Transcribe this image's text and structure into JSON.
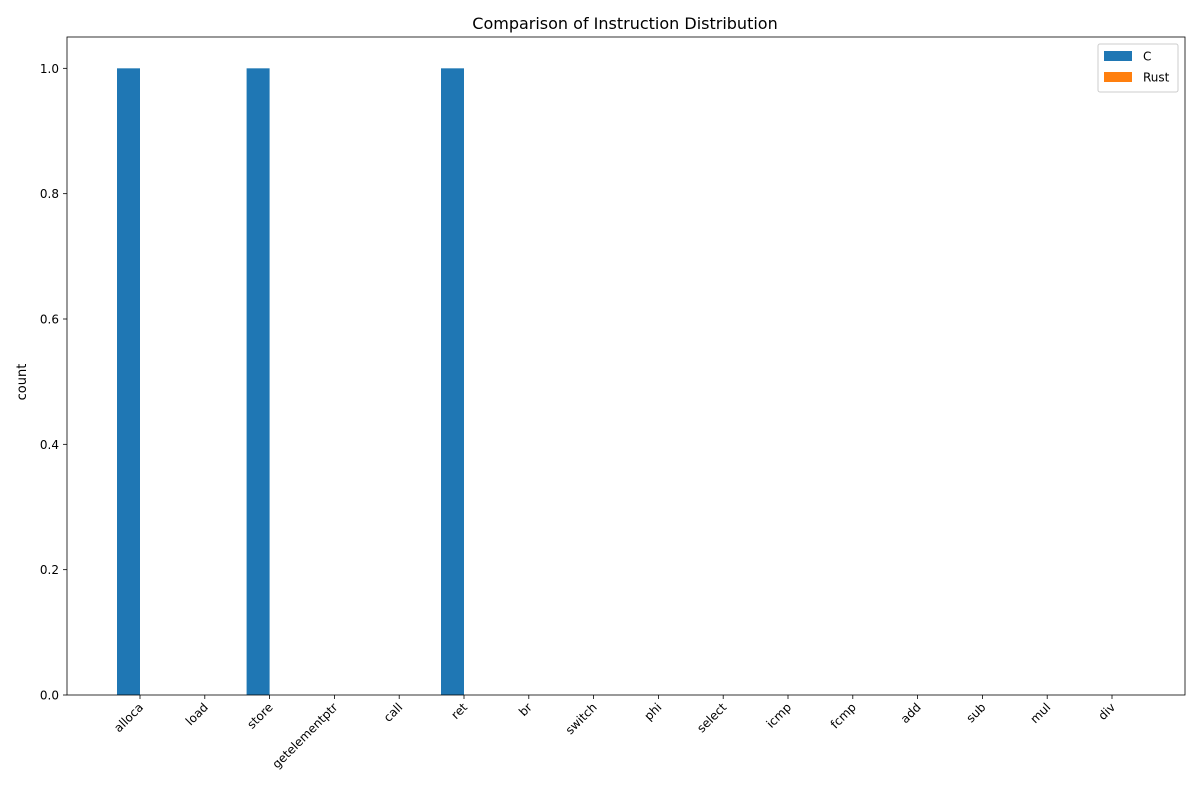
{
  "chart_data": {
    "type": "bar",
    "title": "Comparison of Instruction Distribution",
    "xlabel": "",
    "ylabel": "count",
    "categories": [
      "alloca",
      "load",
      "store",
      "getelementptr",
      "call",
      "ret",
      "br",
      "switch",
      "phi",
      "select",
      "icmp",
      "fcmp",
      "add",
      "sub",
      "mul",
      "div"
    ],
    "series": [
      {
        "name": "C",
        "color": "#1f77b4",
        "values": [
          1,
          0,
          1,
          0,
          0,
          1,
          0,
          0,
          0,
          0,
          0,
          0,
          0,
          0,
          0,
          0
        ]
      },
      {
        "name": "Rust",
        "color": "#ff7f0e",
        "values": [
          0,
          0,
          0,
          0,
          0,
          0,
          0,
          0,
          0,
          0,
          0,
          0,
          0,
          0,
          0,
          0
        ]
      }
    ],
    "ylim": [
      0,
      1.05
    ],
    "yticks": [
      "0.0",
      "0.2",
      "0.4",
      "0.6",
      "0.8",
      "1.0"
    ],
    "grid": false,
    "legend_position": "top-right"
  }
}
